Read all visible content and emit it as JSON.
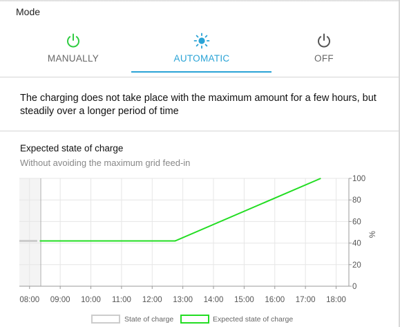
{
  "mode": {
    "label": "Mode"
  },
  "tabs": [
    {
      "label": "MANUALLY",
      "icon": "power-icon",
      "color": "#2ecc40"
    },
    {
      "label": "AUTOMATIC",
      "icon": "sun-icon",
      "color": "#29a3d6",
      "active": true
    },
    {
      "label": "OFF",
      "icon": "power-icon",
      "color": "#555555"
    }
  ],
  "description": "The charging does not take place with the maximum amount for a few hours, but steadily over a longer period of time",
  "chart": {
    "title": "Expected state of charge",
    "subtitle": "Without avoiding the maximum grid feed-in"
  },
  "chart_data": {
    "type": "line",
    "x_ticks": [
      "08:00",
      "09:00",
      "10:00",
      "11:00",
      "12:00",
      "13:00",
      "14:00",
      "15:00",
      "16:00",
      "17:00",
      "18:00"
    ],
    "y_ticks": [
      "0",
      "20",
      "40",
      "60",
      "80",
      "100"
    ],
    "y_unit": "%",
    "xlim": [
      "07:40",
      "18:25"
    ],
    "ylim": [
      0,
      100
    ],
    "grid": true,
    "legend": "bottom",
    "series": [
      {
        "name": "State of charge",
        "color": "#cccccc",
        "x": [
          "07:40",
          "08:15"
        ],
        "y": [
          42,
          42
        ]
      },
      {
        "name": "Expected state of charge",
        "color": "#22dd22",
        "x": [
          "08:20",
          "12:45",
          "17:30"
        ],
        "y": [
          42,
          42,
          100
        ]
      }
    ]
  }
}
